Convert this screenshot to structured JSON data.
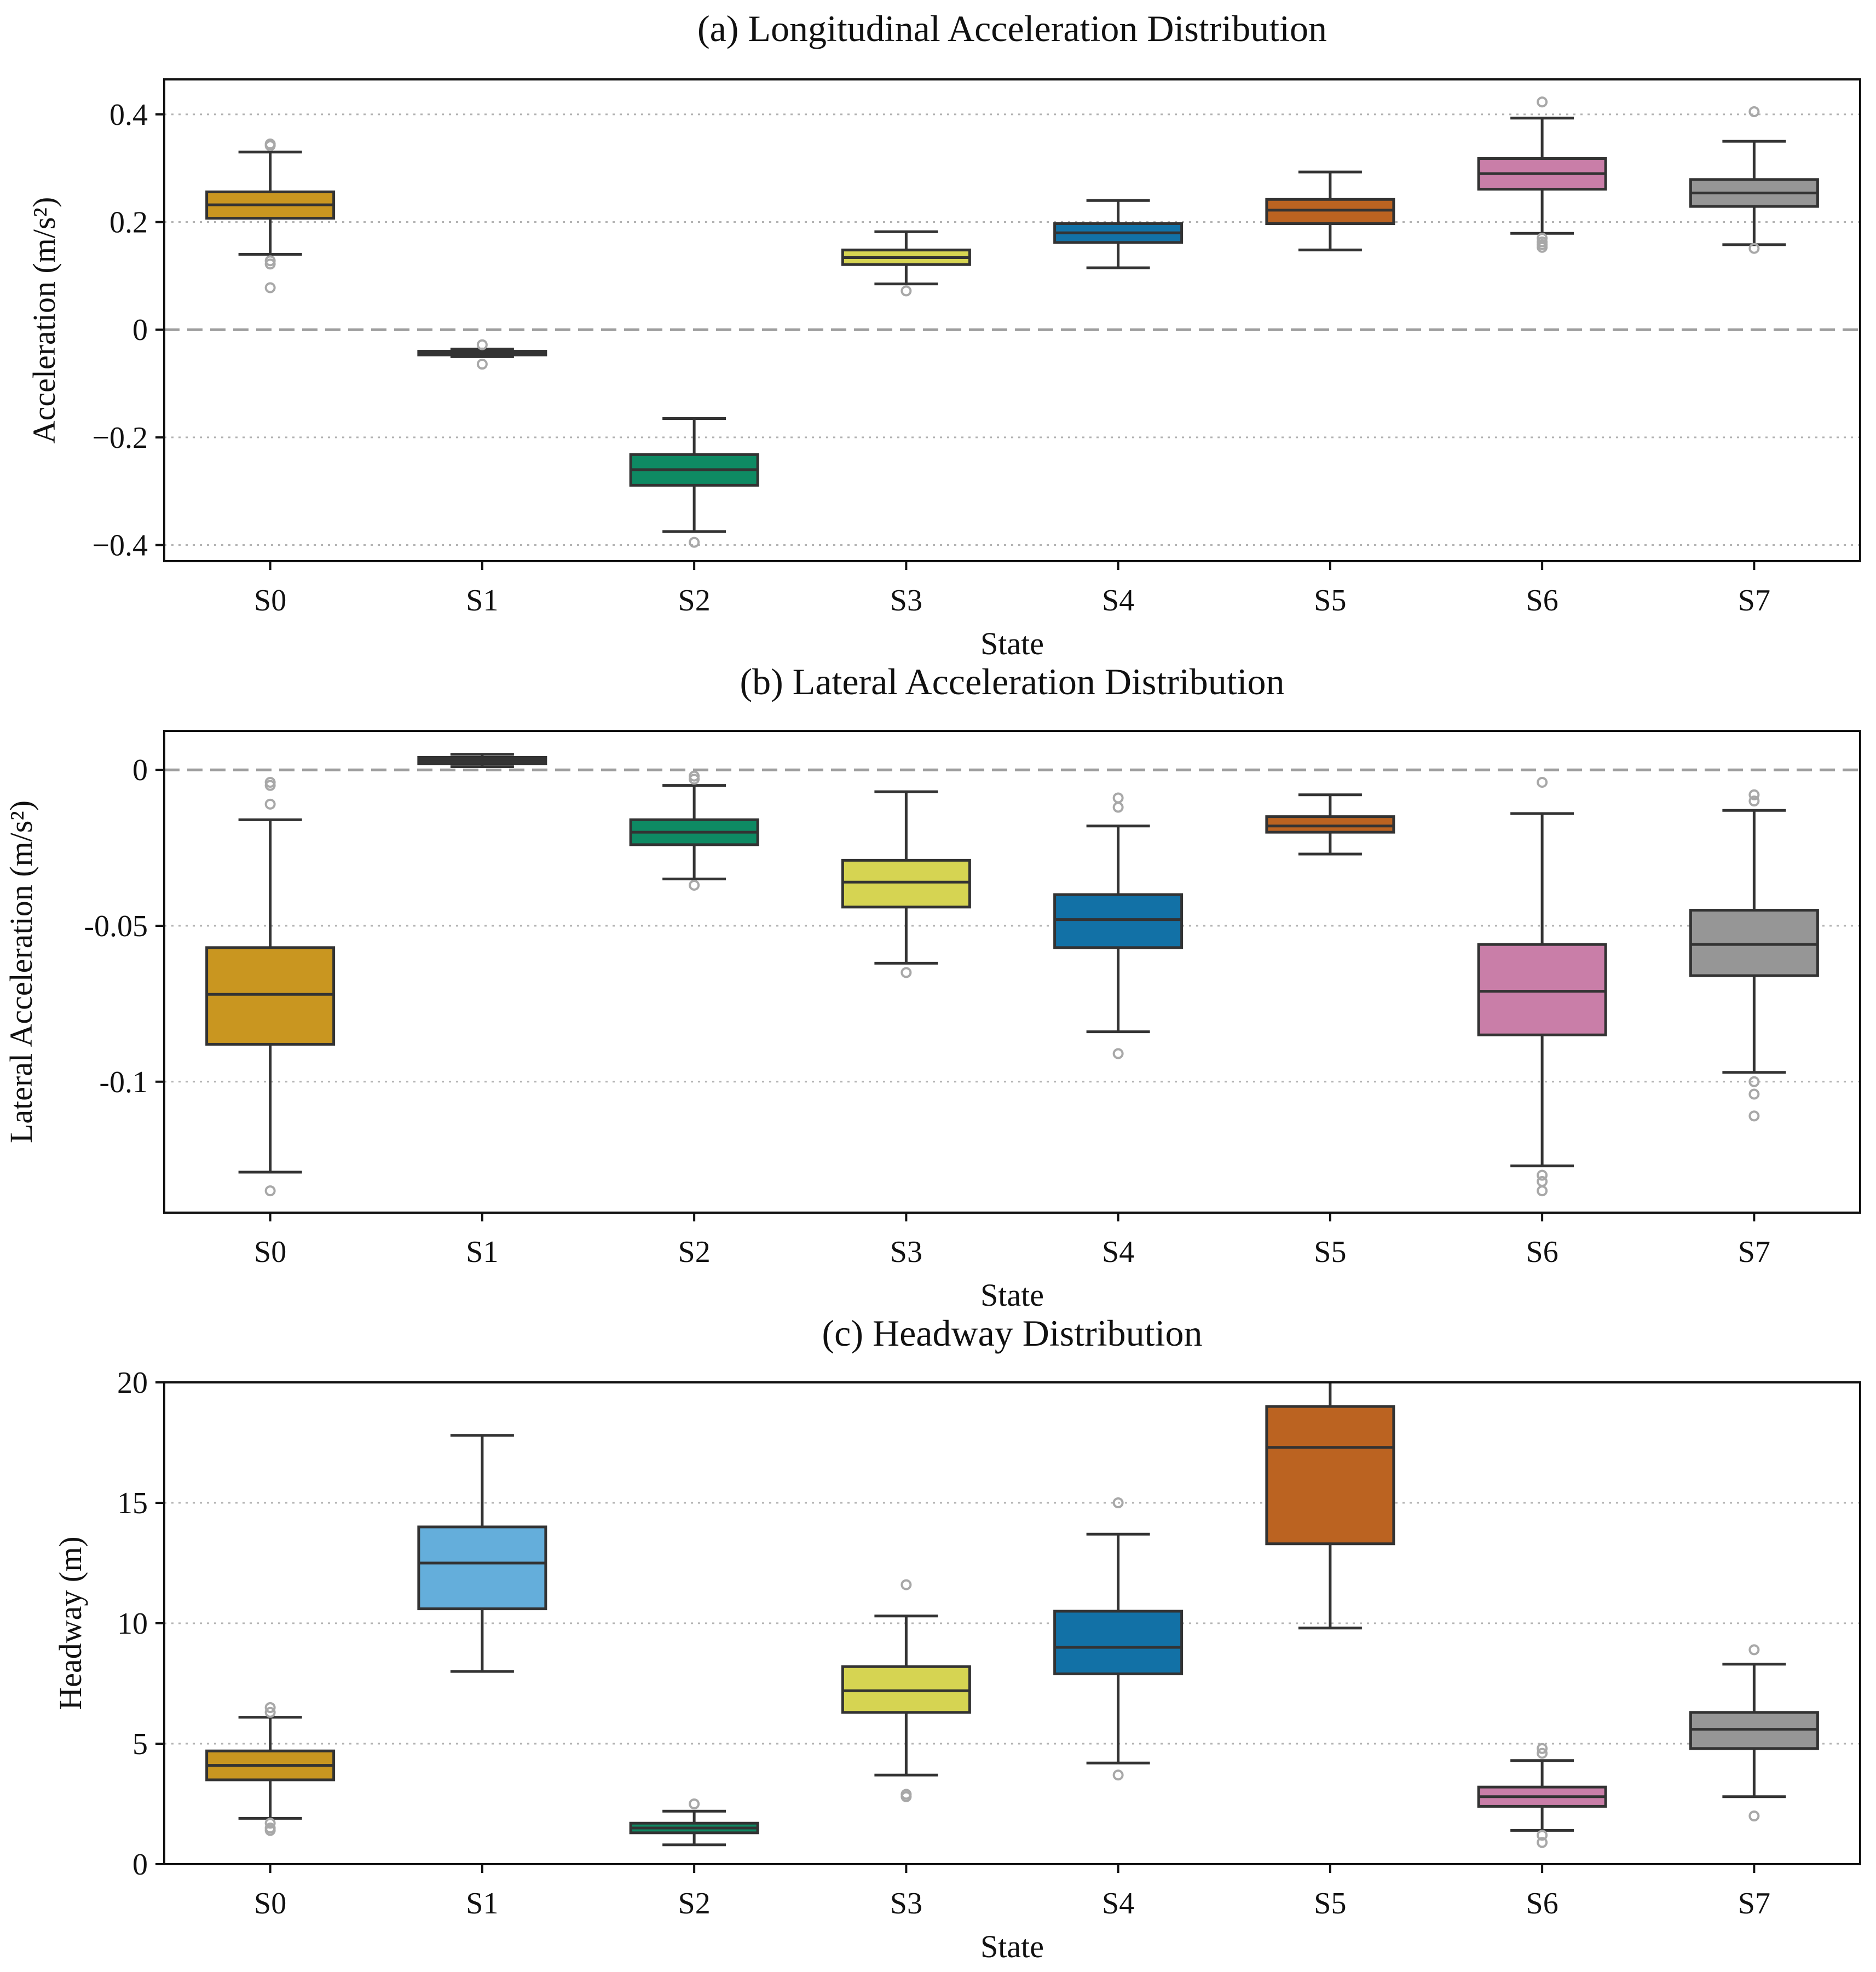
{
  "chart_data": [
    {
      "type": "box",
      "title": "(a) Longitudinal Acceleration Distribution",
      "xlabel": "State",
      "ylabel": "Acceleration (m/s²)",
      "ylim": [
        -0.43,
        0.465
      ],
      "yticks": [
        -0.4,
        -0.2,
        0,
        0.2,
        0.4
      ],
      "ytick_labels": [
        "−0.4",
        "−0.2",
        "0",
        "0.2",
        "0.4"
      ],
      "grid": "y-dotted",
      "reference_line": 0,
      "categories": [
        "S0",
        "S1",
        "S2",
        "S3",
        "S4",
        "S5",
        "S6",
        "S7"
      ],
      "colors": [
        "#c99620",
        "#3b3b3b",
        "#0e8a63",
        "#d6d452",
        "#1271a6",
        "#bb6321",
        "#c97ea8",
        "#969696"
      ],
      "boxes": [
        {
          "whislo": 0.14,
          "q1": 0.207,
          "med": 0.232,
          "q3": 0.256,
          "whishi": 0.33,
          "fliers": [
            0.345,
            0.342,
            0.128,
            0.122,
            0.078
          ]
        },
        {
          "whislo": -0.05,
          "q1": -0.047,
          "med": -0.044,
          "q3": -0.04,
          "whishi": -0.036,
          "fliers": [
            -0.028,
            -0.064
          ]
        },
        {
          "whislo": -0.375,
          "q1": -0.289,
          "med": -0.26,
          "q3": -0.232,
          "whishi": -0.165,
          "fliers": [
            -0.395
          ]
        },
        {
          "whislo": 0.085,
          "q1": 0.121,
          "med": 0.134,
          "q3": 0.148,
          "whishi": 0.182,
          "fliers": [
            0.072
          ]
        },
        {
          "whislo": 0.115,
          "q1": 0.162,
          "med": 0.18,
          "q3": 0.197,
          "whishi": 0.24,
          "fliers": []
        },
        {
          "whislo": 0.148,
          "q1": 0.197,
          "med": 0.222,
          "q3": 0.242,
          "whishi": 0.293,
          "fliers": []
        },
        {
          "whislo": 0.179,
          "q1": 0.261,
          "med": 0.29,
          "q3": 0.318,
          "whishi": 0.393,
          "fliers": [
            0.423,
            0.17,
            0.163,
            0.158,
            0.153
          ]
        },
        {
          "whislo": 0.158,
          "q1": 0.229,
          "med": 0.254,
          "q3": 0.279,
          "whishi": 0.35,
          "fliers": [
            0.405,
            0.151
          ]
        }
      ]
    },
    {
      "type": "box",
      "title": "(b) Lateral Acceleration Distribution",
      "xlabel": "State",
      "ylabel": "Lateral Acceleration (m/s²)",
      "ylim": [
        -0.142,
        0.0125
      ],
      "yticks": [
        -0.1,
        -0.05,
        0
      ],
      "ytick_labels": [
        "-0.1",
        "-0.05",
        "0"
      ],
      "grid": "y-dotted",
      "reference_line": 0,
      "categories": [
        "S0",
        "S1",
        "S2",
        "S3",
        "S4",
        "S5",
        "S6",
        "S7"
      ],
      "colors": [
        "#c99620",
        "#3b3b3b",
        "#0e8a63",
        "#d6d452",
        "#1271a6",
        "#bb6321",
        "#c97ea8",
        "#969696"
      ],
      "boxes": [
        {
          "whislo": -0.129,
          "q1": -0.088,
          "med": -0.072,
          "q3": -0.057,
          "whishi": -0.016,
          "fliers": [
            -0.004,
            -0.005,
            -0.011,
            -0.135
          ]
        },
        {
          "whislo": 0.001,
          "q1": 0.002,
          "med": 0.003,
          "q3": 0.004,
          "whishi": 0.005,
          "fliers": []
        },
        {
          "whislo": -0.035,
          "q1": -0.024,
          "med": -0.02,
          "q3": -0.016,
          "whishi": -0.005,
          "fliers": [
            -0.002,
            -0.003,
            -0.037
          ]
        },
        {
          "whislo": -0.062,
          "q1": -0.044,
          "med": -0.036,
          "q3": -0.029,
          "whishi": -0.007,
          "fliers": [
            -0.065
          ]
        },
        {
          "whislo": -0.084,
          "q1": -0.057,
          "med": -0.048,
          "q3": -0.04,
          "whishi": -0.018,
          "fliers": [
            -0.009,
            -0.012,
            -0.091
          ]
        },
        {
          "whislo": -0.027,
          "q1": -0.02,
          "med": -0.018,
          "q3": -0.015,
          "whishi": -0.008,
          "fliers": []
        },
        {
          "whislo": -0.127,
          "q1": -0.085,
          "med": -0.071,
          "q3": -0.056,
          "whishi": -0.014,
          "fliers": [
            -0.004,
            -0.13,
            -0.132,
            -0.135
          ]
        },
        {
          "whislo": -0.097,
          "q1": -0.066,
          "med": -0.056,
          "q3": -0.045,
          "whishi": -0.013,
          "fliers": [
            -0.008,
            -0.01,
            -0.1,
            -0.104,
            -0.111
          ]
        }
      ]
    },
    {
      "type": "box",
      "title": "(c) Headway Distribution",
      "xlabel": "State",
      "ylabel": "Headway (m)",
      "ylim": [
        0,
        20
      ],
      "yticks": [
        0,
        5,
        10,
        15,
        20
      ],
      "ytick_labels": [
        "0",
        "5",
        "10",
        "15",
        "20"
      ],
      "grid": "y-dotted",
      "categories": [
        "S0",
        "S1",
        "S2",
        "S3",
        "S4",
        "S5",
        "S6",
        "S7"
      ],
      "colors": [
        "#c99620",
        "#64aedb",
        "#0e8a63",
        "#d6d452",
        "#1271a6",
        "#bb6321",
        "#c97ea8",
        "#969696"
      ],
      "boxes": [
        {
          "whislo": 1.9,
          "q1": 3.5,
          "med": 4.1,
          "q3": 4.7,
          "whishi": 6.1,
          "fliers": [
            6.5,
            6.3,
            1.7,
            1.5,
            1.4
          ]
        },
        {
          "whislo": 8.0,
          "q1": 10.6,
          "med": 12.5,
          "q3": 14.0,
          "whishi": 17.8,
          "fliers": []
        },
        {
          "whislo": 0.8,
          "q1": 1.3,
          "med": 1.5,
          "q3": 1.7,
          "whishi": 2.2,
          "fliers": [
            2.5
          ]
        },
        {
          "whislo": 3.7,
          "q1": 6.3,
          "med": 7.2,
          "q3": 8.2,
          "whishi": 10.3,
          "fliers": [
            11.6,
            2.9,
            2.8
          ]
        },
        {
          "whislo": 4.2,
          "q1": 7.9,
          "med": 9.0,
          "q3": 10.5,
          "whishi": 13.7,
          "fliers": [
            15.0,
            3.7
          ]
        },
        {
          "whislo": 9.8,
          "q1": 13.3,
          "med": 17.3,
          "q3": 19.0,
          "whishi": 20.5,
          "fliers": []
        },
        {
          "whislo": 1.4,
          "q1": 2.4,
          "med": 2.8,
          "q3": 3.2,
          "whishi": 4.3,
          "fliers": [
            4.8,
            4.6,
            1.2,
            0.9
          ]
        },
        {
          "whislo": 2.8,
          "q1": 4.8,
          "med": 5.6,
          "q3": 6.3,
          "whishi": 8.3,
          "fliers": [
            8.9,
            2.0
          ]
        }
      ]
    }
  ]
}
